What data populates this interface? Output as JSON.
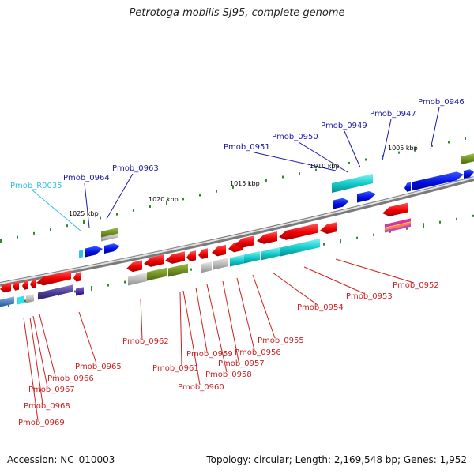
{
  "title": "Petrotoga mobilis SJ95, complete genome",
  "footer": {
    "accession": "Accession: NC_010003",
    "summary": "Topology: circular; Length: 2,169,548 bp; Genes: 1,952"
  },
  "colors": {
    "upper_label": "#1a1aa8",
    "rna_label": "#33c0e0",
    "lower_label": "#cc2020",
    "backbone": "#8a8a8a",
    "tick": "#2e8b2e"
  },
  "scale_labels": [
    "1025 kbp",
    "1020 kbp",
    "1015 kbp",
    "1010 kbp",
    "1005 kbp"
  ],
  "upper_genes": [
    "Pmob_R0035",
    "Pmob_0964",
    "Pmob_0963",
    "Pmob_0951",
    "Pmob_0950",
    "Pmob_0949",
    "Pmob_0947",
    "Pmob_0946"
  ],
  "lower_genes": [
    "Pmob_0969",
    "Pmob_0968",
    "Pmob_0967",
    "Pmob_0966",
    "Pmob_0965",
    "Pmob_0962",
    "Pmob_0961",
    "Pmob_0960",
    "Pmob_0959",
    "Pmob_0958",
    "Pmob_0957",
    "Pmob_0956",
    "Pmob_0955",
    "Pmob_0954",
    "Pmob_0953",
    "Pmob_0952"
  ]
}
